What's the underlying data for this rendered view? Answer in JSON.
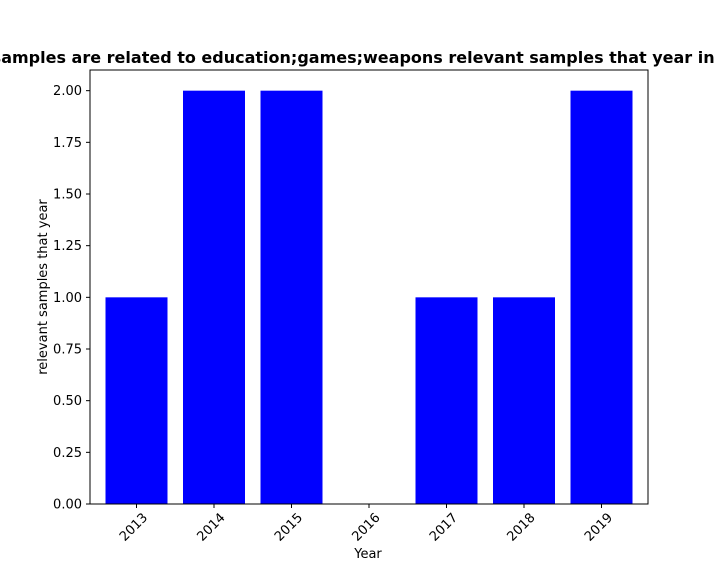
{
  "chart_data": {
    "type": "bar",
    "title": "Number of samples are related to education;games;weapons relevant samples that year in privacy policy",
    "xlabel": "Year",
    "ylabel": "relevant samples that year",
    "categories": [
      "2013",
      "2014",
      "2015",
      "2016",
      "2017",
      "2018",
      "2019"
    ],
    "values": [
      1,
      2,
      2,
      0,
      1,
      1,
      2
    ],
    "ylim": [
      0,
      2.1
    ],
    "yticks": [
      "0.00",
      "0.25",
      "0.50",
      "0.75",
      "1.00",
      "1.25",
      "1.50",
      "1.75",
      "2.00"
    ],
    "bar_color": "#0000ff",
    "grid": false,
    "legend": "none"
  }
}
